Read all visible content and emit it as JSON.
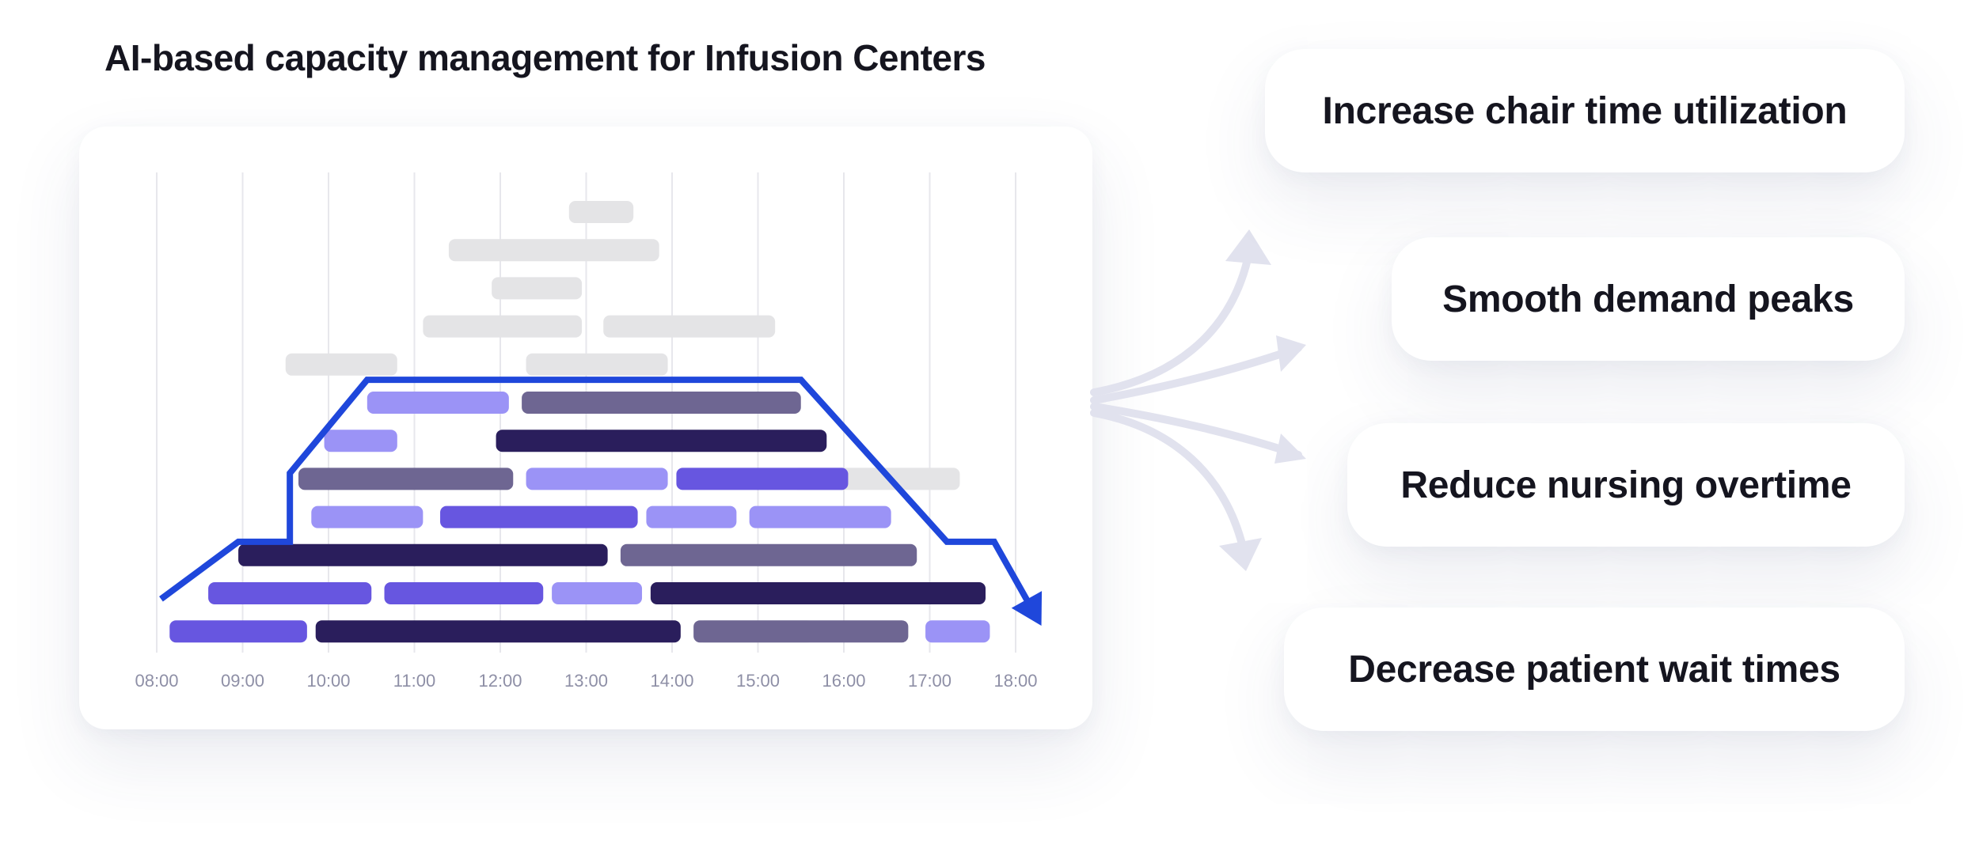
{
  "title": "AI-based capacity management for Infusion Centers",
  "benefits": [
    "Increase chair time utilization",
    "Smooth demand peaks",
    "Reduce nursing overtime",
    "Decrease patient wait times"
  ],
  "colors": {
    "dark": "#2a1e5c",
    "slate": "#6e6692",
    "medium": "#6756e0",
    "light": "#9b93f6",
    "unscheduled": "#e4e4e6",
    "capacity_line": "#1f47db",
    "gridline": "#e7e7ec",
    "arrows": "#e1e2ee"
  },
  "chart_data": {
    "type": "gantt",
    "x_ticks": [
      "08:00",
      "09:00",
      "10:00",
      "11:00",
      "12:00",
      "13:00",
      "14:00",
      "15:00",
      "16:00",
      "17:00",
      "18:00"
    ],
    "x_range": [
      8.0,
      18.0
    ],
    "unscheduled": [
      {
        "row": 0,
        "start": 12.8,
        "end": 13.55
      },
      {
        "row": 1,
        "start": 11.4,
        "end": 13.85
      },
      {
        "row": 2,
        "start": 11.9,
        "end": 12.95
      },
      {
        "row": 3,
        "start": 11.1,
        "end": 12.95
      },
      {
        "row": 3,
        "start": 13.2,
        "end": 15.2
      },
      {
        "row": 4,
        "start": 9.5,
        "end": 10.8
      },
      {
        "row": 4,
        "start": 12.3,
        "end": 13.95
      },
      {
        "row": 7,
        "start": 15.4,
        "end": 17.35
      },
      {
        "row": 11,
        "start": 14.3,
        "end": 15.65
      }
    ],
    "scheduled": [
      {
        "row": 5,
        "start": 10.45,
        "end": 12.1,
        "color": "light"
      },
      {
        "row": 5,
        "start": 12.25,
        "end": 15.5,
        "color": "slate"
      },
      {
        "row": 6,
        "start": 9.95,
        "end": 10.8,
        "color": "light"
      },
      {
        "row": 6,
        "start": 11.95,
        "end": 15.8,
        "color": "dark"
      },
      {
        "row": 7,
        "start": 9.65,
        "end": 12.15,
        "color": "slate"
      },
      {
        "row": 7,
        "start": 12.3,
        "end": 13.95,
        "color": "light"
      },
      {
        "row": 7,
        "start": 14.05,
        "end": 16.05,
        "color": "medium"
      },
      {
        "row": 8,
        "start": 9.8,
        "end": 11.1,
        "color": "light"
      },
      {
        "row": 8,
        "start": 11.3,
        "end": 13.6,
        "color": "medium"
      },
      {
        "row": 8,
        "start": 13.7,
        "end": 14.75,
        "color": "light"
      },
      {
        "row": 8,
        "start": 14.9,
        "end": 16.55,
        "color": "light"
      },
      {
        "row": 9,
        "start": 8.95,
        "end": 13.25,
        "color": "dark"
      },
      {
        "row": 9,
        "start": 13.4,
        "end": 16.85,
        "color": "slate"
      },
      {
        "row": 10,
        "start": 8.6,
        "end": 10.5,
        "color": "medium"
      },
      {
        "row": 10,
        "start": 10.65,
        "end": 12.5,
        "color": "medium"
      },
      {
        "row": 10,
        "start": 12.6,
        "end": 13.65,
        "color": "light"
      },
      {
        "row": 10,
        "start": 13.75,
        "end": 17.65,
        "color": "dark"
      },
      {
        "row": 11,
        "start": 8.15,
        "end": 9.75,
        "color": "medium"
      },
      {
        "row": 11,
        "start": 9.85,
        "end": 14.1,
        "color": "dark"
      },
      {
        "row": 11,
        "start": 14.25,
        "end": 16.75,
        "color": "slate"
      },
      {
        "row": 11,
        "start": 16.95,
        "end": 17.7,
        "color": "light"
      }
    ],
    "capacity_line": [
      [
        8.05,
        10.15
      ],
      [
        8.95,
        8.65
      ],
      [
        9.55,
        8.65
      ],
      [
        9.55,
        6.85
      ],
      [
        10.45,
        4.4
      ],
      [
        15.5,
        4.4
      ],
      [
        17.2,
        8.65
      ],
      [
        17.75,
        8.65
      ],
      [
        18.3,
        10.85
      ]
    ]
  }
}
